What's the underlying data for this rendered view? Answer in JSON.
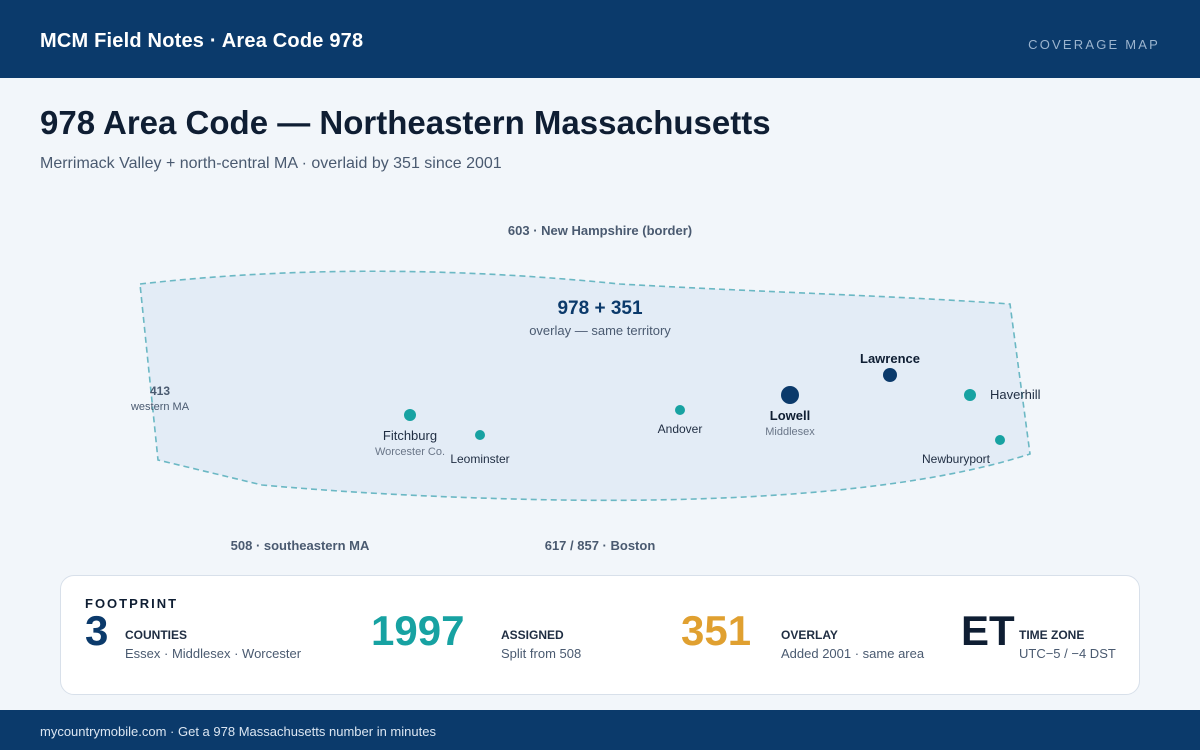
{
  "header": {
    "brand": "MCM Field Notes · Area Code 978",
    "tagline": "COVERAGE MAP"
  },
  "page": {
    "title": "978 Area Code — Northeastern Massachusetts",
    "subtitle": "Merrimack Valley + north-central MA · overlaid by 351 since 2001"
  },
  "map": {
    "region": {
      "label": "978 + 351",
      "sublabel": "overlay — same territory",
      "fill": "#e3ecf6",
      "border": "#6bb8c4"
    },
    "neighbors": {
      "north": "603 · New Hampshire (border)",
      "west_code": "413",
      "west_name": "western MA",
      "southwest": "508 · southeastern MA",
      "south": "617 / 857 · Boston"
    },
    "cities": [
      {
        "name": "Fitchburg",
        "note": "Worcester Co.",
        "tier": "minor"
      },
      {
        "name": "Leominster",
        "note": "",
        "tier": "minor"
      },
      {
        "name": "Andover",
        "note": "",
        "tier": "small"
      },
      {
        "name": "Lowell",
        "note": "Middlesex",
        "tier": "major"
      },
      {
        "name": "Lawrence",
        "note": "",
        "tier": "major"
      },
      {
        "name": "Haverhill",
        "note": "",
        "tier": "minor"
      },
      {
        "name": "Newburyport",
        "note": "",
        "tier": "small"
      }
    ]
  },
  "stats": {
    "heading": "FOOTPRINT",
    "items": [
      {
        "value": "3",
        "label": "COUNTIES",
        "detail": "Essex · Middlesex · Worcester",
        "color": "#0b3a6b"
      },
      {
        "value": "1997",
        "label": "ASSIGNED",
        "detail": "Split from 508",
        "color": "#17a2a2"
      },
      {
        "value": "351",
        "label": "OVERLAY",
        "detail": "Added 2001 · same area",
        "color": "#e0a030"
      },
      {
        "value": "ET",
        "label": "TIME ZONE",
        "detail": "UTC−5 / −4 DST",
        "color": "#0f1e33"
      }
    ]
  },
  "footer": {
    "text": "mycountrymobile.com · Get a 978 Massachusetts number in minutes"
  },
  "colors": {
    "navy": "#0b3a6b",
    "teal": "#17a2a2",
    "gold": "#e0a030"
  }
}
